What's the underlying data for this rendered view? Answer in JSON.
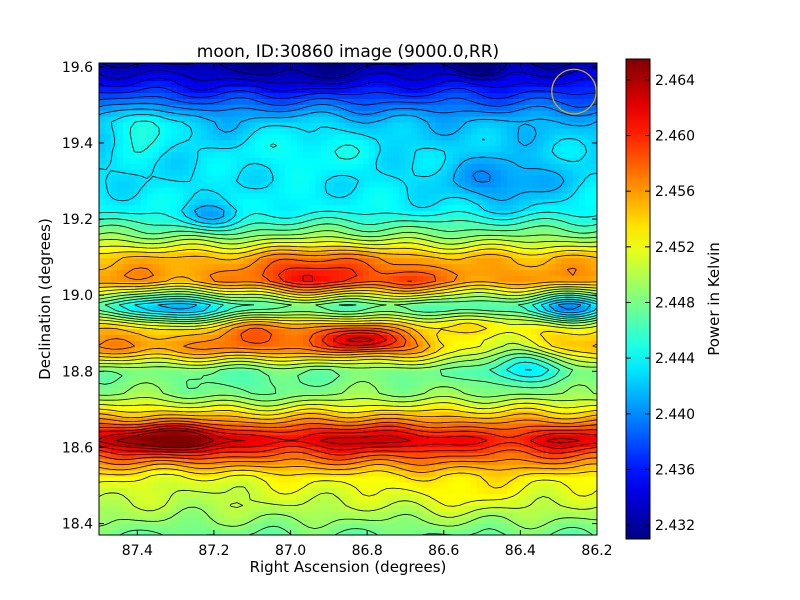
{
  "chart_data": {
    "type": "heatmap",
    "title": "moon, ID:30860 image (9000.0,RR)",
    "xlabel": "Right Ascension (degrees)",
    "ylabel": "Declination (degrees)",
    "colorbar_label": "Power in Kelvin",
    "colormap": "jet",
    "contours": true,
    "xlim": [
      87.5,
      86.2
    ],
    "ylim": [
      18.37,
      19.61
    ],
    "vlim": [
      2.431,
      2.4655
    ],
    "xticks": [
      87.4,
      87.2,
      87.0,
      86.8,
      86.6,
      86.4,
      86.2
    ],
    "xtick_labels": [
      "87.4",
      "87.2",
      "87.0",
      "86.8",
      "86.6",
      "86.4",
      "86.2"
    ],
    "yticks": [
      18.4,
      18.6,
      18.8,
      19.0,
      19.2,
      19.4,
      19.6
    ],
    "ytick_labels": [
      "18.4",
      "18.6",
      "18.8",
      "19.0",
      "19.2",
      "19.4",
      "19.6"
    ],
    "cbar_ticks": [
      2.432,
      2.436,
      2.44,
      2.444,
      2.448,
      2.452,
      2.456,
      2.46,
      2.464
    ],
    "cbar_tick_labels": [
      "2.432",
      "2.436",
      "2.440",
      "2.444",
      "2.448",
      "2.452",
      "2.456",
      "2.460",
      "2.464"
    ],
    "beam_marker": {
      "ra": 86.26,
      "dec": 19.535,
      "radius_deg": 0.058,
      "color": "#d4b800"
    },
    "baseline_profile": [
      [
        18.37,
        2.4475
      ],
      [
        18.45,
        2.4505
      ],
      [
        18.52,
        2.4525
      ],
      [
        18.57,
        2.457
      ],
      [
        18.62,
        2.4605
      ],
      [
        18.68,
        2.455
      ],
      [
        18.74,
        2.449
      ],
      [
        18.8,
        2.4475
      ],
      [
        18.86,
        2.4565
      ],
      [
        18.92,
        2.455
      ],
      [
        18.97,
        2.4455
      ],
      [
        19.04,
        2.4565
      ],
      [
        19.1,
        2.455
      ],
      [
        19.16,
        2.4485
      ],
      [
        19.22,
        2.444
      ],
      [
        19.3,
        2.443
      ],
      [
        19.38,
        2.443
      ],
      [
        19.46,
        2.4415
      ],
      [
        19.53,
        2.437
      ],
      [
        19.61,
        2.4325
      ]
    ],
    "features": [
      {
        "ra": 87.35,
        "dec": 18.625,
        "amp": 0.0055,
        "sra": 0.12,
        "sdec": 0.025
      },
      {
        "ra": 87.25,
        "dec": 18.615,
        "amp": 0.0025,
        "sra": 0.08,
        "sdec": 0.03
      },
      {
        "ra": 86.83,
        "dec": 18.625,
        "amp": 0.003,
        "sra": 0.12,
        "sdec": 0.03
      },
      {
        "ra": 86.62,
        "dec": 18.62,
        "amp": 0.0015,
        "sra": 0.06,
        "sdec": 0.025
      },
      {
        "ra": 86.28,
        "dec": 18.625,
        "amp": 0.0025,
        "sra": 0.07,
        "sdec": 0.025
      },
      {
        "ra": 86.8,
        "dec": 18.885,
        "amp": 0.0075,
        "sra": 0.07,
        "sdec": 0.02
      },
      {
        "ra": 87.05,
        "dec": 18.9,
        "amp": 0.0025,
        "sra": 0.12,
        "sdec": 0.03
      },
      {
        "ra": 86.4,
        "dec": 18.84,
        "amp": -0.007,
        "sra": 0.08,
        "sdec": 0.04
      },
      {
        "ra": 86.57,
        "dec": 18.88,
        "amp": -0.003,
        "sra": 0.08,
        "sdec": 0.03
      },
      {
        "ra": 86.95,
        "dec": 19.04,
        "amp": 0.0045,
        "sra": 0.09,
        "sdec": 0.035
      },
      {
        "ra": 86.7,
        "dec": 19.03,
        "amp": 0.004,
        "sra": 0.05,
        "sdec": 0.03
      },
      {
        "ra": 86.9,
        "dec": 19.1,
        "amp": 0.002,
        "sra": 0.12,
        "sdec": 0.04
      },
      {
        "ra": 87.3,
        "dec": 18.96,
        "amp": -0.0065,
        "sra": 0.08,
        "sdec": 0.035
      },
      {
        "ra": 86.26,
        "dec": 18.96,
        "amp": -0.007,
        "sra": 0.07,
        "sdec": 0.035
      },
      {
        "ra": 87.2,
        "dec": 19.2,
        "amp": -0.004,
        "sra": 0.06,
        "sdec": 0.025
      },
      {
        "ra": 87.38,
        "dec": 19.45,
        "amp": 0.004,
        "sra": 0.05,
        "sdec": 0.04
      },
      {
        "ra": 86.5,
        "dec": 19.6,
        "amp": -0.004,
        "sra": 0.04,
        "sdec": 0.02
      },
      {
        "ra": 86.45,
        "dec": 19.3,
        "amp": -0.003,
        "sra": 0.1,
        "sdec": 0.05
      },
      {
        "ra": 86.95,
        "dec": 19.4,
        "amp": 0.0015,
        "sra": 0.12,
        "sdec": 0.06
      },
      {
        "ra": 86.98,
        "dec": 19.58,
        "amp": -0.002,
        "sra": 0.15,
        "sdec": 0.03
      },
      {
        "ra": 87.1,
        "dec": 18.75,
        "amp": -0.0015,
        "sra": 0.1,
        "sdec": 0.04
      },
      {
        "ra": 86.55,
        "dec": 18.48,
        "amp": 0.0015,
        "sra": 0.1,
        "sdec": 0.04
      },
      {
        "ra": 87.25,
        "dec": 18.5,
        "amp": -0.0012,
        "sra": 0.1,
        "sdec": 0.04
      }
    ]
  }
}
